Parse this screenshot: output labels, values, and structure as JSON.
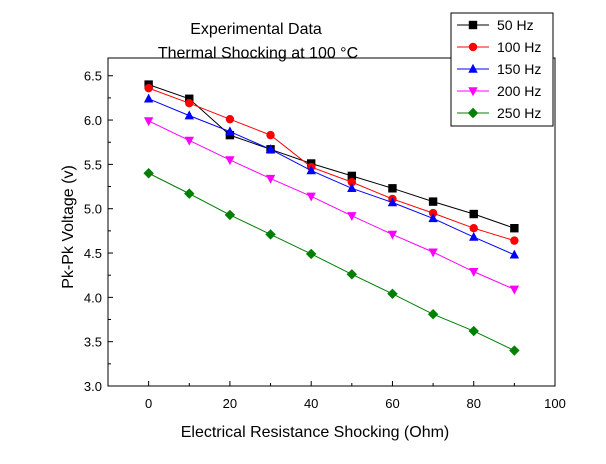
{
  "chart_data": {
    "type": "line",
    "title_lines": [
      "Experimental Data",
      "Thermal Shocking at 100 °C"
    ],
    "xlabel": "Electrical Resistance Shocking (Ohm)",
    "ylabel": "Pk-Pk Voltage (v)",
    "xlim": [
      -10,
      100
    ],
    "ylim": [
      3.0,
      6.7
    ],
    "xticks": [
      0,
      20,
      40,
      60,
      80,
      100
    ],
    "yticks": [
      3.0,
      3.5,
      4.0,
      4.5,
      5.0,
      5.5,
      6.0,
      6.5
    ],
    "xtick_labels": [
      "0",
      "20",
      "40",
      "60",
      "80",
      "100"
    ],
    "ytick_labels": [
      "3.0",
      "3.5",
      "4.0",
      "4.5",
      "5.0",
      "5.5",
      "6.0",
      "6.5"
    ],
    "grid": false,
    "legend_position": "top-right",
    "x": [
      0,
      10,
      20,
      30,
      40,
      50,
      60,
      70,
      80,
      90
    ],
    "series": [
      {
        "name": "50 Hz",
        "color": "#000000",
        "marker": "square",
        "values": [
          6.4,
          6.24,
          5.83,
          5.67,
          5.51,
          5.37,
          5.23,
          5.08,
          4.94,
          4.78
        ]
      },
      {
        "name": "100 Hz",
        "color": "#ff0000",
        "marker": "circle",
        "values": [
          6.36,
          6.19,
          6.01,
          5.83,
          5.47,
          5.3,
          5.11,
          4.95,
          4.78,
          4.64
        ]
      },
      {
        "name": "150 Hz",
        "color": "#0000ff",
        "marker": "triangle-up",
        "values": [
          6.24,
          6.05,
          5.87,
          5.67,
          5.43,
          5.23,
          5.07,
          4.89,
          4.68,
          4.48
        ]
      },
      {
        "name": "200 Hz",
        "color": "#ff00ff",
        "marker": "triangle-down",
        "values": [
          5.99,
          5.77,
          5.55,
          5.34,
          5.14,
          4.92,
          4.71,
          4.51,
          4.29,
          4.09
        ]
      },
      {
        "name": "250 Hz",
        "color": "#008000",
        "marker": "diamond",
        "values": [
          5.4,
          5.17,
          4.93,
          4.71,
          4.49,
          4.26,
          4.04,
          3.81,
          3.62,
          3.4
        ]
      }
    ]
  }
}
